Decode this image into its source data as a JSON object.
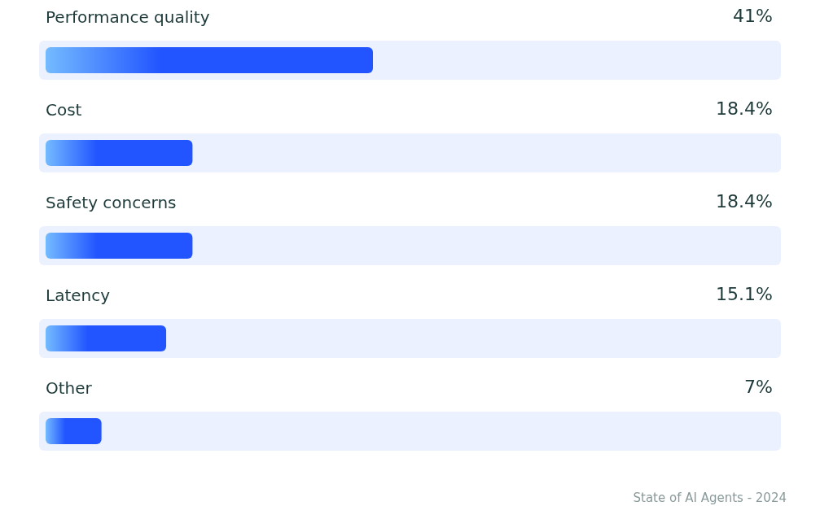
{
  "chart_data": {
    "type": "bar",
    "orientation": "horizontal",
    "categories": [
      "Performance quality",
      "Cost",
      "Safety concerns",
      "Latency",
      "Other"
    ],
    "values": [
      41,
      18.4,
      18.4,
      15.1,
      7
    ],
    "value_labels": [
      "41%",
      "18.4%",
      "18.4%",
      "15.1%",
      "7%"
    ],
    "color": "#2255ff",
    "annotations": [
      "State of AI Agents - 2024"
    ]
  }
}
